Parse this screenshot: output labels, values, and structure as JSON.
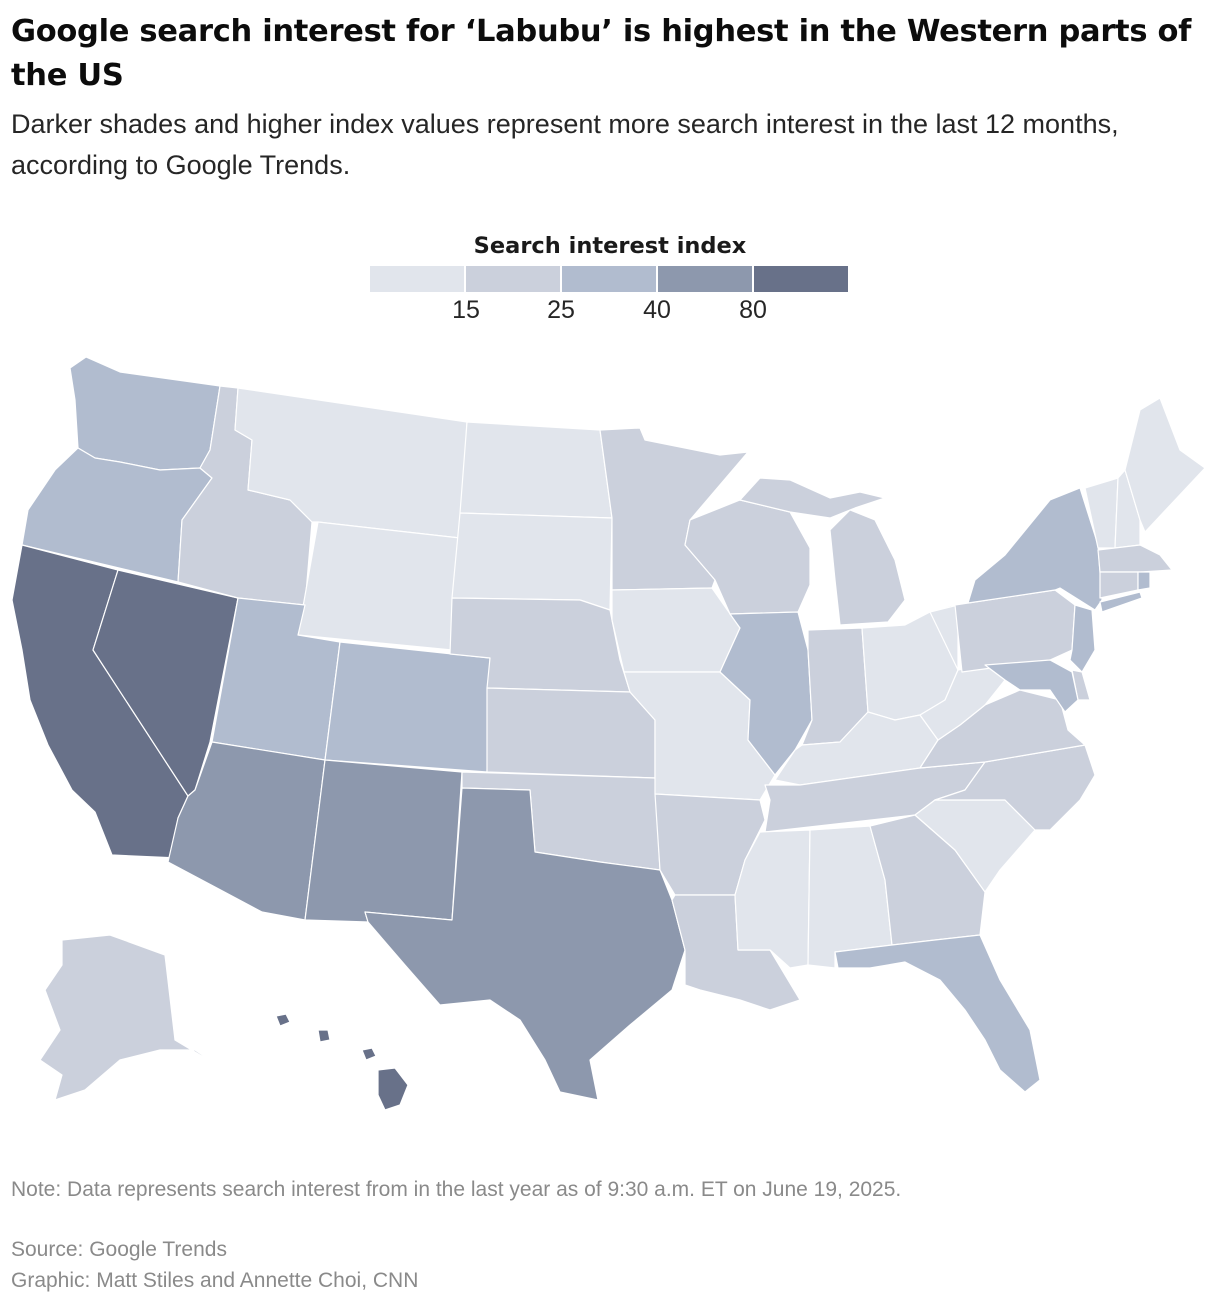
{
  "header": {
    "title": "Google search interest for ‘Labubu’ is highest in the Western parts of the US",
    "subtitle": "Darker shades and higher index values represent more search interest in the last 12 months, according to Google Trends."
  },
  "legend": {
    "title": "Search interest index",
    "thresholds": [
      "15",
      "25",
      "40",
      "80"
    ],
    "colors": [
      "#e1e5ec",
      "#cbd0dc",
      "#b1bccf",
      "#8d98ad",
      "#687189"
    ]
  },
  "map_data": {
    "type": "choropleth",
    "bin_colors": [
      "#e1e5ec",
      "#cbd0dc",
      "#b1bccf",
      "#8d98ad",
      "#687189"
    ],
    "state_bins": {
      "WA": 2,
      "OR": 2,
      "CA": 4,
      "NV": 4,
      "ID": 1,
      "MT": 0,
      "WY": 0,
      "UT": 2,
      "CO": 2,
      "AZ": 3,
      "NM": 3,
      "TX": 3,
      "ND": 0,
      "SD": 0,
      "NE": 1,
      "KS": 1,
      "OK": 1,
      "MN": 1,
      "IA": 0,
      "MO": 0,
      "AR": 1,
      "LA": 1,
      "WI": 1,
      "IL": 2,
      "MI": 1,
      "IN": 1,
      "OH": 0,
      "KY": 0,
      "TN": 1,
      "MS": 0,
      "AL": 0,
      "GA": 1,
      "FL": 2,
      "SC": 0,
      "NC": 1,
      "VA": 1,
      "WV": 0,
      "PA": 1,
      "NY": 2,
      "NJ": 2,
      "DE": 1,
      "MD": 2,
      "VT": 0,
      "NH": 0,
      "ME": 0,
      "MA": 1,
      "CT": 1,
      "RI": 2,
      "AK": 1,
      "HI": 4
    }
  },
  "footer": {
    "note": "Note: Data represents search interest from in the last year as of 9:30 a.m. ET on June 19, 2025.",
    "source": "Source: Google Trends",
    "credit": "Graphic: Matt Stiles and Annette Choi, CNN"
  }
}
